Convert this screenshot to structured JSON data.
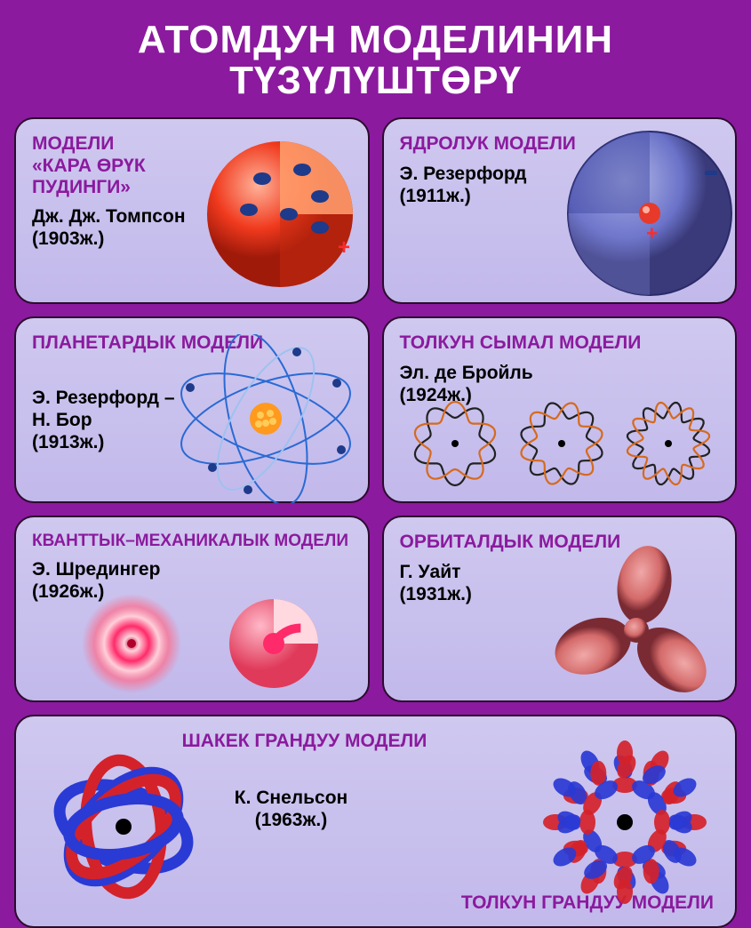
{
  "page": {
    "title": "АТОМДУН МОДЕЛИНИН ТҮЗҮЛҮШТӨРҮ",
    "title_fontsize": 44,
    "background_color": "#8b1a9e",
    "card_background_top": "#cfc8ef",
    "card_background_bottom": "#c2b9eb",
    "card_border_color": "#2b0b2e",
    "heading_color": "#8b1a9e",
    "author_color": "#000000",
    "title_color": "#ffffff"
  },
  "cards": {
    "thomson": {
      "title": "МОДЕЛИ\n«КАРА ӨРҮК\nПУДИНГИ»",
      "author": "Дж. Дж. Томпсон\n(1903ж.)",
      "illus": {
        "type": "cutaway_sphere",
        "colors": {
          "sphere": "#f03a1e",
          "highlight": "#ffb39a",
          "inner": "#ff9b6a",
          "electron": "#1e3a8a",
          "plus": "#ff2a2a"
        }
      }
    },
    "rutherford_nuclear": {
      "title": "ЯДРОЛУК МОДЕЛИ",
      "author": "Э. Резерфорд\n(1911ж.)",
      "illus": {
        "type": "transparent_sphere_nucleus",
        "colors": {
          "sphere": "#6a72c9",
          "edge": "#2a2a6a",
          "nucleus": "#e83a2a",
          "plus": "#ff2a2a",
          "minus": "#1e3a8a"
        }
      }
    },
    "bohr": {
      "title": "ПЛАНЕТАРДЫК МОДЕЛИ",
      "author": "Э. Резерфорд –\nН. Бор\n(1913ж.)",
      "illus": {
        "type": "planetary_orbits",
        "colors": {
          "orbit": "#2a6ad4",
          "orbit_light": "#9ec2f0",
          "electron": "#1e3a8a",
          "nucleus": "#ff9a1e"
        }
      }
    },
    "debroglie": {
      "title": "ТОЛКУН СЫМАЛ МОДЕЛИ",
      "author": "Эл. де Бройль\n(1924ж.)",
      "illus": {
        "type": "standing_waves",
        "colors": {
          "wave_a": "#d66a1e",
          "wave_b": "#222222",
          "center": "#000000"
        },
        "lobes": [
          5,
          6,
          8
        ]
      }
    },
    "schrodinger": {
      "title": "КВАНТТЫК–МЕХАНИКАЛЫК МОДЕЛИ",
      "author": "Э. Шредингер\n(1926ж.)",
      "illus": {
        "type": "probability_clouds",
        "colors": {
          "cloud": "#ff2a6a",
          "center": "#b0002a",
          "ring": "#ff6a8a",
          "solid": "#ff5a7a"
        }
      }
    },
    "white": {
      "title": "ОРБИТАЛДЫК МОДЕЛИ",
      "author": "Г. Уайт\n(1931ж.)",
      "illus": {
        "type": "orbital_lobes",
        "colors": {
          "lobe": "#d46a6a",
          "lobe_light": "#f0a8a8",
          "shadow": "#7a2a32"
        }
      }
    },
    "snelson": {
      "title_left": "ШАКЕК ГРАНДУУ МОДЕЛИ",
      "author": "К. Снельсон\n(1963ж.)",
      "title_right": "ТОЛКУН ГРАНДУУ МОДЕЛИ",
      "illus": {
        "type": "ring_and_wave_solids",
        "colors": {
          "ring_red": "#d4222a",
          "ring_blue": "#2a3ad4",
          "center": "#000000"
        }
      }
    }
  }
}
